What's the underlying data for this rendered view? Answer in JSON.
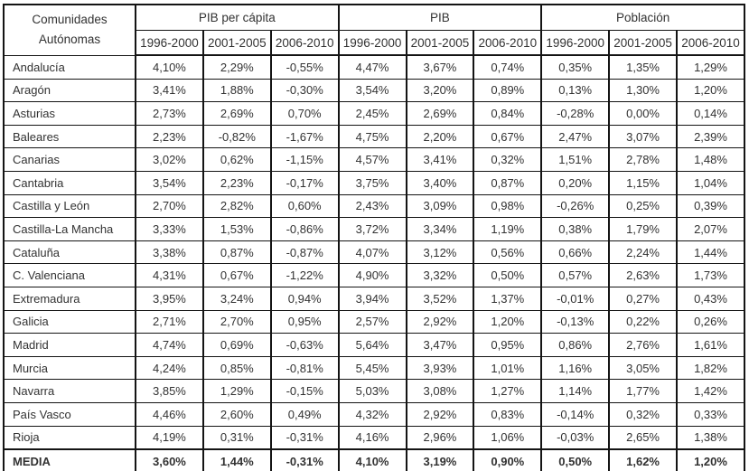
{
  "chart_data": {
    "type": "table",
    "title": "",
    "row_header": {
      "line1": "Comunidades",
      "line2": "Autónomas"
    },
    "column_groups": [
      {
        "label": "PIB per cápita"
      },
      {
        "label": "PIB"
      },
      {
        "label": "Población"
      }
    ],
    "periods": [
      "1996-2000",
      "2001-2005",
      "2006-2010"
    ],
    "value_unit": "%",
    "rows": [
      {
        "name": "Andalucía",
        "values": [
          "4,10%",
          "2,29%",
          "-0,55%",
          "4,47%",
          "3,67%",
          "0,74%",
          "0,35%",
          "1,35%",
          "1,29%"
        ]
      },
      {
        "name": "Aragón",
        "values": [
          "3,41%",
          "1,88%",
          "-0,30%",
          "3,54%",
          "3,20%",
          "0,89%",
          "0,13%",
          "1,30%",
          "1,20%"
        ]
      },
      {
        "name": "Asturias",
        "values": [
          "2,73%",
          "2,69%",
          "0,70%",
          "2,45%",
          "2,69%",
          "0,84%",
          "-0,28%",
          "0,00%",
          "0,14%"
        ]
      },
      {
        "name": "Baleares",
        "values": [
          "2,23%",
          "-0,82%",
          "-1,67%",
          "4,75%",
          "2,20%",
          "0,67%",
          "2,47%",
          "3,07%",
          "2,39%"
        ]
      },
      {
        "name": "Canarias",
        "values": [
          "3,02%",
          "0,62%",
          "-1,15%",
          "4,57%",
          "3,41%",
          "0,32%",
          "1,51%",
          "2,78%",
          "1,48%"
        ]
      },
      {
        "name": "Cantabria",
        "values": [
          "3,54%",
          "2,23%",
          "-0,17%",
          "3,75%",
          "3,40%",
          "0,87%",
          "0,20%",
          "1,15%",
          "1,04%"
        ]
      },
      {
        "name": "Castilla y León",
        "values": [
          "2,70%",
          "2,82%",
          "0,60%",
          "2,43%",
          "3,09%",
          "0,98%",
          "-0,26%",
          "0,25%",
          "0,39%"
        ]
      },
      {
        "name": "Castilla-La Mancha",
        "values": [
          "3,33%",
          "1,53%",
          "-0,86%",
          "3,72%",
          "3,34%",
          "1,19%",
          "0,38%",
          "1,79%",
          "2,07%"
        ]
      },
      {
        "name": "Cataluña",
        "values": [
          "3,38%",
          "0,87%",
          "-0,87%",
          "4,07%",
          "3,12%",
          "0,56%",
          "0,66%",
          "2,24%",
          "1,44%"
        ]
      },
      {
        "name": "C. Valenciana",
        "values": [
          "4,31%",
          "0,67%",
          "-1,22%",
          "4,90%",
          "3,32%",
          "0,50%",
          "0,57%",
          "2,63%",
          "1,73%"
        ]
      },
      {
        "name": "Extremadura",
        "values": [
          "3,95%",
          "3,24%",
          "0,94%",
          "3,94%",
          "3,52%",
          "1,37%",
          "-0,01%",
          "0,27%",
          "0,43%"
        ]
      },
      {
        "name": "Galicia",
        "values": [
          "2,71%",
          "2,70%",
          "0,95%",
          "2,57%",
          "2,92%",
          "1,20%",
          "-0,13%",
          "0,22%",
          "0,26%"
        ]
      },
      {
        "name": "Madrid",
        "values": [
          "4,74%",
          "0,69%",
          "-0,63%",
          "5,64%",
          "3,47%",
          "0,95%",
          "0,86%",
          "2,76%",
          "1,61%"
        ]
      },
      {
        "name": "Murcia",
        "values": [
          "4,24%",
          "0,85%",
          "-0,81%",
          "5,45%",
          "3,93%",
          "1,01%",
          "1,16%",
          "3,05%",
          "1,82%"
        ]
      },
      {
        "name": "Navarra",
        "values": [
          "3,85%",
          "1,29%",
          "-0,15%",
          "5,03%",
          "3,08%",
          "1,27%",
          "1,14%",
          "1,77%",
          "1,42%"
        ]
      },
      {
        "name": "País Vasco",
        "values": [
          "4,46%",
          "2,60%",
          "0,49%",
          "4,32%",
          "2,92%",
          "0,83%",
          "-0,14%",
          "0,32%",
          "0,33%"
        ]
      },
      {
        "name": "Rioja",
        "values": [
          "4,19%",
          "0,31%",
          "-0,31%",
          "4,16%",
          "2,96%",
          "1,06%",
          "-0,03%",
          "2,65%",
          "1,38%"
        ]
      },
      {
        "name": "MEDIA",
        "values": [
          "3,60%",
          "1,44%",
          "-0,31%",
          "4,10%",
          "3,19%",
          "0,90%",
          "0,50%",
          "1,62%",
          "1,20%"
        ],
        "bold": true
      }
    ],
    "colors": {
      "border": "#141414",
      "text": "#323232",
      "background": "#ffffff"
    },
    "layout": {
      "grid": "full",
      "value_alignment": "center",
      "name_alignment": "left"
    }
  }
}
